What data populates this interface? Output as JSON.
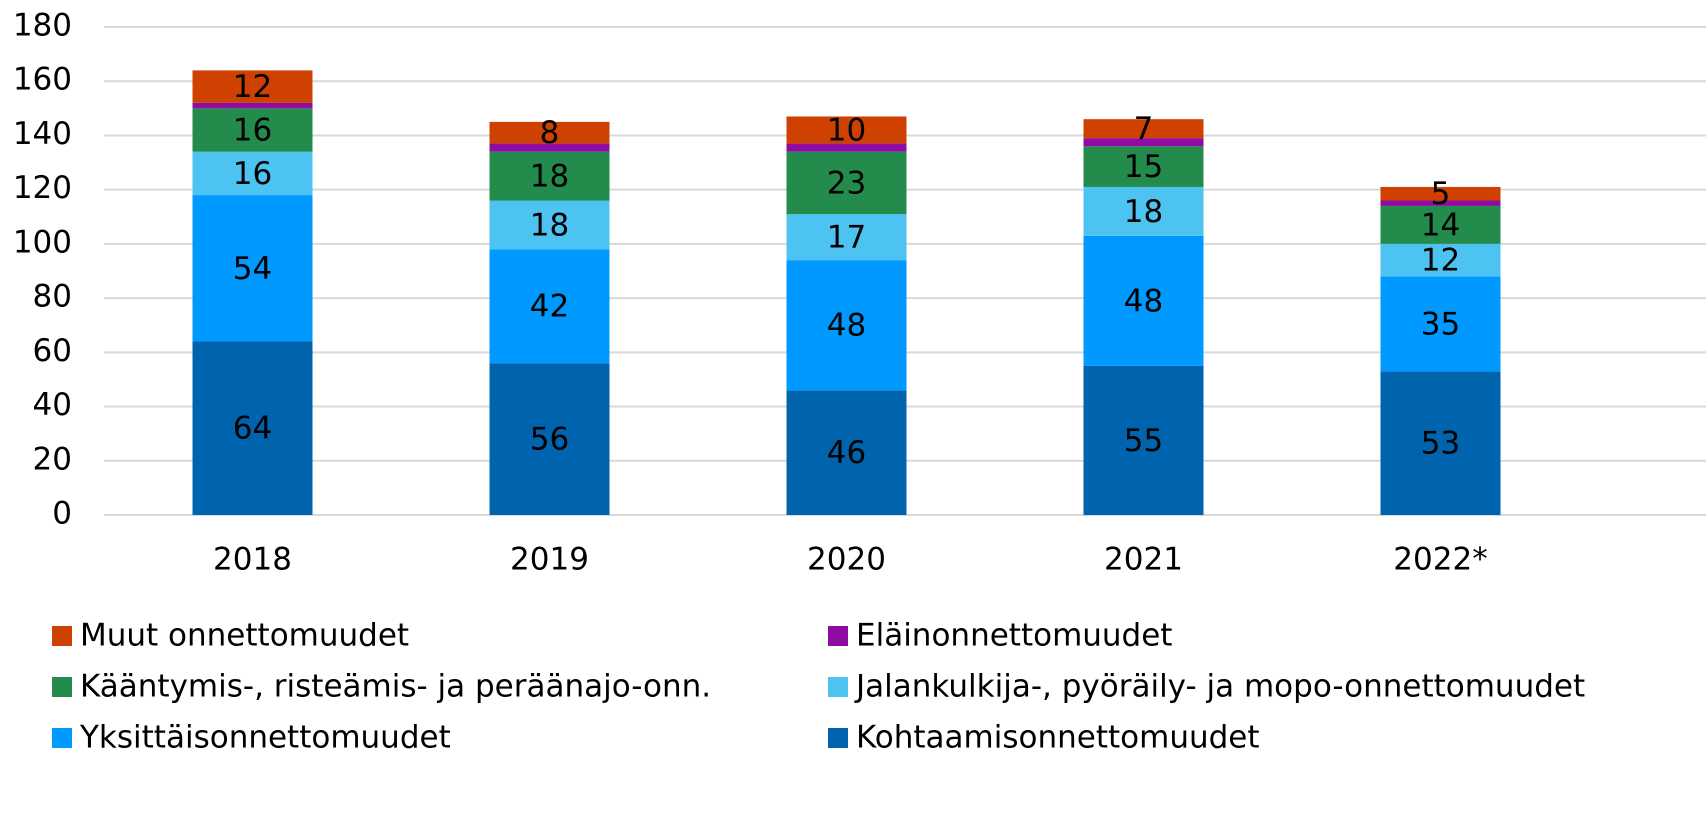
{
  "chart_data": {
    "type": "stacked_bar",
    "categories": [
      "2018",
      "2019",
      "2020",
      "2021",
      "2022*"
    ],
    "series": [
      {
        "name": "Kohtaamisonnettomuudet",
        "color": "#0063ae",
        "values": [
          64,
          56,
          46,
          55,
          53
        ],
        "data_labels": true
      },
      {
        "name": "Yksittäisonnettomuudet",
        "color": "#0099ff",
        "values": [
          54,
          42,
          48,
          48,
          35
        ],
        "data_labels": true
      },
      {
        "name": "Jalankulkija-, pyöräily- ja mopo-onnettomuudet",
        "color": "#4dc3f2",
        "values": [
          16,
          18,
          17,
          18,
          12
        ],
        "data_labels": true
      },
      {
        "name": "Kääntymis-, risteämis- ja peräänajo-onn.",
        "color": "#238b4b",
        "values": [
          16,
          18,
          23,
          15,
          14
        ],
        "data_labels": true
      },
      {
        "name": "Eläinonnettomuudet",
        "color": "#8e0ca2",
        "values": [
          2,
          3,
          3,
          3,
          2
        ],
        "data_labels": false
      },
      {
        "name": "Muut onnettomuudet",
        "color": "#cf4100",
        "values": [
          12,
          8,
          10,
          7,
          5
        ],
        "data_labels": true
      }
    ],
    "ylim": [
      0,
      180
    ],
    "yticks": [
      0,
      20,
      40,
      60,
      80,
      100,
      120,
      140,
      160,
      180
    ],
    "grid": true
  }
}
